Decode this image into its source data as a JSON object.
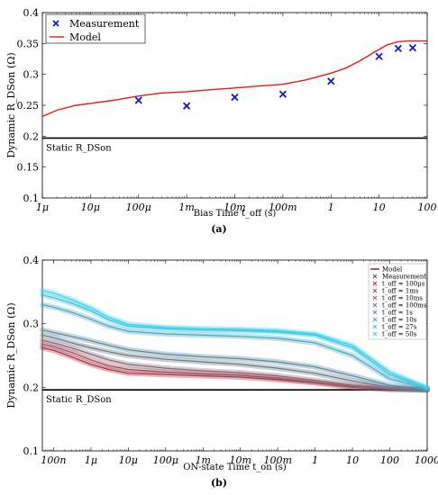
{
  "chart_data": [
    {
      "id": "a",
      "type": "line",
      "panel_label": "(a)",
      "xlabel": "Bias Time t_off (s)",
      "ylabel": "Dynamic R_DSon (Ω)",
      "xscale": "log",
      "xlim": [
        1e-06,
        100
      ],
      "ylim": [
        0.1,
        0.4
      ],
      "xtick_values": [
        1e-06,
        1e-05,
        0.0001,
        0.001,
        0.01,
        0.1,
        1,
        10,
        100
      ],
      "xtick_labels": [
        "1μ",
        "10μ",
        "100μ",
        "1m",
        "10m",
        "100m",
        "1",
        "10",
        "100"
      ],
      "ytick_values": [
        0.1,
        0.15,
        0.2,
        0.25,
        0.3,
        0.35,
        0.4
      ],
      "ytick_labels": [
        "0.1",
        "0.15",
        "0.2",
        "0.25",
        "0.3",
        "0.35",
        "0.4"
      ],
      "legend": {
        "placement": "top-left",
        "entries": [
          {
            "label": "Measurement",
            "marker": "x",
            "color": "#1a1ab0"
          },
          {
            "label": "Model",
            "marker": "line",
            "color": "#e41a1c"
          }
        ]
      },
      "static_line": {
        "y": 0.197,
        "label": "Static R_DSon",
        "color": "#000000"
      },
      "series": [
        {
          "name": "Measurement",
          "marker": "x",
          "color": "#1a1ab0",
          "x": [
            0.0001,
            0.001,
            0.01,
            0.1,
            1,
            10,
            25,
            50
          ],
          "y": [
            0.258,
            0.249,
            0.263,
            0.268,
            0.289,
            0.329,
            0.342,
            0.343
          ]
        },
        {
          "name": "Model",
          "marker": "line",
          "color": "#e41a1c",
          "x": [
            1e-06,
            2e-06,
            5e-06,
            1e-05,
            3e-05,
            0.0001,
            0.0003,
            0.001,
            0.003,
            0.01,
            0.03,
            0.1,
            0.3,
            1,
            2,
            4,
            8,
            15,
            25,
            40,
            60,
            100
          ],
          "y": [
            0.232,
            0.242,
            0.25,
            0.253,
            0.258,
            0.265,
            0.27,
            0.272,
            0.275,
            0.278,
            0.281,
            0.284,
            0.291,
            0.302,
            0.31,
            0.322,
            0.336,
            0.348,
            0.353,
            0.354,
            0.354,
            0.354
          ]
        }
      ]
    },
    {
      "id": "b",
      "type": "line",
      "panel_label": "(b)",
      "xlabel": "ON-state Time t_on (s)",
      "ylabel": "Dynamic R_DSon (Ω)",
      "xscale": "log",
      "xlim": [
        5e-08,
        1000
      ],
      "ylim": [
        0.1,
        0.4
      ],
      "xtick_values": [
        1e-07,
        1e-06,
        1e-05,
        0.0001,
        0.001,
        0.01,
        0.1,
        1,
        10,
        100,
        1000
      ],
      "xtick_labels": [
        "100n",
        "1μ",
        "10μ",
        "100μ",
        "1m",
        "10m",
        "100m",
        "1",
        "10",
        "100",
        "1000"
      ],
      "ytick_values": [
        0.1,
        0.2,
        0.3,
        0.4
      ],
      "ytick_labels": [
        "0.1",
        "0.2",
        "0.3",
        "0.4"
      ],
      "legend": {
        "placement": "top-right",
        "entries": [
          {
            "label": "Model",
            "marker": "line",
            "color": "#8b1a1a"
          },
          {
            "label": "Measurement",
            "marker": "x",
            "color": "#555555"
          },
          {
            "label": "t_off = 100μs",
            "marker": "x",
            "color": "#b03040"
          },
          {
            "label": "t_off = 1ms",
            "marker": "x",
            "color": "#a05060"
          },
          {
            "label": "t_off = 10ms",
            "marker": "x",
            "color": "#8a6a78"
          },
          {
            "label": "t_off = 100ms",
            "marker": "x",
            "color": "#6a7a8a"
          },
          {
            "label": "t_off = 1s",
            "marker": "x",
            "color": "#5a8aa0"
          },
          {
            "label": "t_off = 10s",
            "marker": "x",
            "color": "#4aa6c4"
          },
          {
            "label": "t_off = 27s",
            "marker": "x",
            "color": "#3ec0e0"
          },
          {
            "label": "t_off = 50s",
            "marker": "x",
            "color": "#36d4ec"
          }
        ]
      },
      "static_line": {
        "y": 0.196,
        "label": "Static R_DSon",
        "color": "#000000"
      },
      "series": [
        {
          "name": "t_off = 100μs",
          "color": "#b03040",
          "x": [
            5e-08,
            1e-07,
            3e-07,
            1e-06,
            3e-06,
            1e-05,
            0.0001,
            0.001,
            0.01,
            0.1,
            1,
            10,
            100,
            1000
          ],
          "y": [
            0.262,
            0.258,
            0.248,
            0.236,
            0.228,
            0.222,
            0.22,
            0.218,
            0.216,
            0.212,
            0.207,
            0.2,
            0.197,
            0.196
          ]
        },
        {
          "name": "t_off = 1ms",
          "color": "#a05060",
          "x": [
            5e-08,
            1e-07,
            3e-07,
            1e-06,
            3e-06,
            1e-05,
            0.0001,
            0.001,
            0.01,
            0.1,
            1,
            10,
            100,
            1000
          ],
          "y": [
            0.268,
            0.264,
            0.255,
            0.243,
            0.234,
            0.228,
            0.224,
            0.221,
            0.219,
            0.214,
            0.208,
            0.201,
            0.197,
            0.196
          ]
        },
        {
          "name": "t_off = 10ms",
          "color": "#8a6a78",
          "x": [
            5e-08,
            1e-07,
            3e-07,
            1e-06,
            3e-06,
            1e-05,
            0.0001,
            0.001,
            0.01,
            0.1,
            1,
            10,
            100,
            1000
          ],
          "y": [
            0.274,
            0.27,
            0.262,
            0.252,
            0.243,
            0.236,
            0.23,
            0.226,
            0.223,
            0.218,
            0.211,
            0.203,
            0.198,
            0.196
          ]
        },
        {
          "name": "t_off = 100ms",
          "color": "#6a7a8a",
          "x": [
            5e-08,
            1e-07,
            3e-07,
            1e-06,
            3e-06,
            1e-05,
            0.0001,
            0.001,
            0.01,
            0.1,
            1,
            10,
            100,
            1000
          ],
          "y": [
            0.282,
            0.278,
            0.27,
            0.262,
            0.256,
            0.25,
            0.244,
            0.24,
            0.236,
            0.23,
            0.222,
            0.21,
            0.2,
            0.196
          ]
        },
        {
          "name": "t_off = 1s",
          "color": "#5a8aa0",
          "x": [
            5e-08,
            1e-07,
            3e-07,
            1e-06,
            3e-06,
            1e-05,
            0.0001,
            0.001,
            0.01,
            0.1,
            1,
            10,
            100,
            1000
          ],
          "y": [
            0.29,
            0.286,
            0.28,
            0.273,
            0.266,
            0.259,
            0.252,
            0.248,
            0.245,
            0.24,
            0.232,
            0.218,
            0.203,
            0.197
          ]
        },
        {
          "name": "t_off = 10s",
          "color": "#4aa6c4",
          "x": [
            5e-08,
            1e-07,
            3e-07,
            1e-06,
            3e-06,
            1e-05,
            0.0001,
            0.001,
            0.01,
            0.1,
            1,
            10,
            100,
            1000
          ],
          "y": [
            0.33,
            0.326,
            0.318,
            0.307,
            0.296,
            0.288,
            0.284,
            0.282,
            0.28,
            0.277,
            0.27,
            0.25,
            0.213,
            0.198
          ]
        },
        {
          "name": "t_off = 27s",
          "color": "#3ec0e0",
          "x": [
            5e-08,
            1e-07,
            3e-07,
            1e-06,
            3e-06,
            1e-05,
            0.0001,
            0.001,
            0.01,
            0.1,
            1,
            10,
            100,
            1000
          ],
          "y": [
            0.345,
            0.341,
            0.332,
            0.32,
            0.306,
            0.296,
            0.292,
            0.29,
            0.289,
            0.287,
            0.282,
            0.262,
            0.22,
            0.199
          ]
        },
        {
          "name": "t_off = 50s",
          "color": "#36d4ec",
          "x": [
            5e-08,
            1e-07,
            3e-07,
            1e-06,
            3e-06,
            1e-05,
            0.0001,
            0.001,
            0.01,
            0.1,
            1,
            10,
            100,
            1000
          ],
          "y": [
            0.352,
            0.348,
            0.338,
            0.325,
            0.31,
            0.299,
            0.294,
            0.292,
            0.291,
            0.289,
            0.284,
            0.266,
            0.224,
            0.199
          ]
        }
      ]
    }
  ]
}
